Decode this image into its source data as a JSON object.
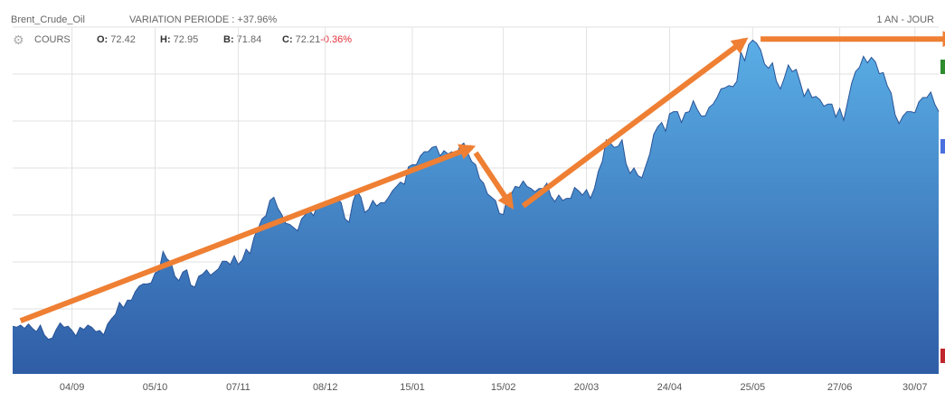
{
  "header": {
    "symbol": "Brent_Crude_Oil",
    "variation": "VARIATION PERIODE : +37.96%",
    "period": "1 AN - JOUR"
  },
  "ohlc": {
    "icon": "gear-icon",
    "cours_label": "COURS",
    "o_label": "O:",
    "o_value": "72.42",
    "h_label": "H:",
    "h_value": "72.95",
    "b_label": "B:",
    "b_value": "71.84",
    "c_label": "C:",
    "c_value": "72.21",
    "c_change": "-0.36%"
  },
  "colors": {
    "area_top": "#5aaee6",
    "area_bottom": "#2f5da6",
    "line": "#2a5497",
    "grid": "#e2e2e2",
    "arrow": "#ee7f33",
    "marker_green": "#2e8b2e",
    "marker_blue": "#4a70e0",
    "marker_red": "#c0262d",
    "negative": "#e0303a"
  },
  "chart_data": {
    "type": "area",
    "title": "",
    "xlabel": "",
    "ylabel": "",
    "x_ticks": [
      "04/09",
      "05/10",
      "07/11",
      "08/12",
      "15/01",
      "15/02",
      "20/03",
      "24/04",
      "25/05",
      "27/06",
      "30/07"
    ],
    "tick_index": [
      15,
      36,
      57,
      79,
      101,
      124,
      145,
      166,
      187,
      209,
      228
    ],
    "ylim": [
      48,
      80
    ],
    "grid": true,
    "legend": "none",
    "y_tick_labels_visible": false,
    "series": [
      {
        "values": [
          52.4,
          52.3,
          52.5,
          52.2,
          52.6,
          52.2,
          51.9,
          52.5,
          51.6,
          51.2,
          51.3,
          52.1,
          52.7,
          52.3,
          52.4,
          52.0,
          51.5,
          52.3,
          52.1,
          52.5,
          52.3,
          51.9,
          52.0,
          51.6,
          52.6,
          53.1,
          53.5,
          54.6,
          54.1,
          54.8,
          54.8,
          55.6,
          56.1,
          56.3,
          56.3,
          56.4,
          57.3,
          57.5,
          59.3,
          58.6,
          58.3,
          57.0,
          56.6,
          57.4,
          57.6,
          56.2,
          56.0,
          57.0,
          57.2,
          57.6,
          57.1,
          57.4,
          57.7,
          58.4,
          58.4,
          58.1,
          58.9,
          58.1,
          58.5,
          59.5,
          59.1,
          60.6,
          61.4,
          62.3,
          62.6,
          64.0,
          64.3,
          63.3,
          62.7,
          61.9,
          61.8,
          61.5,
          61.2,
          62.3,
          62.7,
          63.1,
          62.6,
          63.5,
          63.6,
          63.8,
          64.0,
          63.8,
          64.2,
          63.8,
          62.3,
          62.0,
          63.9,
          64.9,
          64.3,
          62.9,
          63.2,
          64.0,
          63.5,
          63.8,
          63.8,
          64.3,
          64.9,
          65.3,
          65.7,
          65.5,
          67.1,
          67.3,
          67.3,
          68.1,
          68.5,
          68.5,
          68.9,
          69.0,
          68.1,
          68.6,
          68.3,
          68.5,
          68.1,
          69.0,
          69.3,
          68.4,
          67.6,
          67.3,
          66.0,
          65.6,
          64.6,
          64.3,
          64.0,
          62.8,
          62.7,
          64.4,
          64.6,
          65.3,
          65.2,
          65.8,
          65.3,
          65.1,
          64.8,
          65.1,
          65.1,
          65.6,
          64.4,
          63.9,
          64.5,
          64.0,
          64.2,
          64.2,
          65.2,
          64.9,
          64.5,
          65.0,
          64.2,
          65.1,
          66.7,
          67.6,
          69.6,
          69.3,
          68.9,
          69.0,
          69.6,
          67.4,
          66.5,
          67.0,
          66.3,
          66.1,
          67.2,
          68.3,
          70.1,
          70.8,
          71.2,
          70.4,
          72.0,
          72.2,
          72.2,
          71.2,
          72.1,
          72.2,
          73.2,
          72.4,
          71.8,
          71.8,
          72.6,
          72.9,
          73.5,
          74.3,
          74.4,
          74.6,
          74.5,
          75.0,
          77.7,
          76.9,
          78.4,
          78.8,
          78.5,
          77.9,
          76.6,
          76.2,
          76.7,
          75.0,
          74.3,
          75.3,
          76.5,
          75.9,
          76.1,
          74.9,
          73.6,
          74.3,
          73.5,
          73.6,
          73.3,
          72.7,
          72.9,
          72.9,
          71.7,
          72.5,
          71.4,
          73.1,
          74.8,
          75.9,
          76.3,
          77.3,
          76.7,
          77.2,
          76.8,
          75.7,
          75.8,
          74.6,
          73.9,
          71.9,
          71.1,
          71.8,
          72.2,
          72.2,
          72.1,
          73.1,
          73.5,
          73.5,
          74.0,
          72.9,
          72.2
        ]
      }
    ],
    "annotations": [
      {
        "shape": "arrow",
        "from": [
          2,
          52.9
        ],
        "to": [
          116,
          68.9
        ]
      },
      {
        "shape": "arrow",
        "from": [
          117,
          68.4
        ],
        "to": [
          126,
          63.5
        ]
      },
      {
        "shape": "arrow",
        "from": [
          129,
          63.5
        ],
        "to": [
          185,
          78.8
        ]
      },
      {
        "shape": "arrow",
        "from": [
          189,
          78.9
        ],
        "to": [
          238,
          78.9
        ]
      }
    ],
    "markers": [
      "green",
      "blue",
      "red"
    ]
  }
}
